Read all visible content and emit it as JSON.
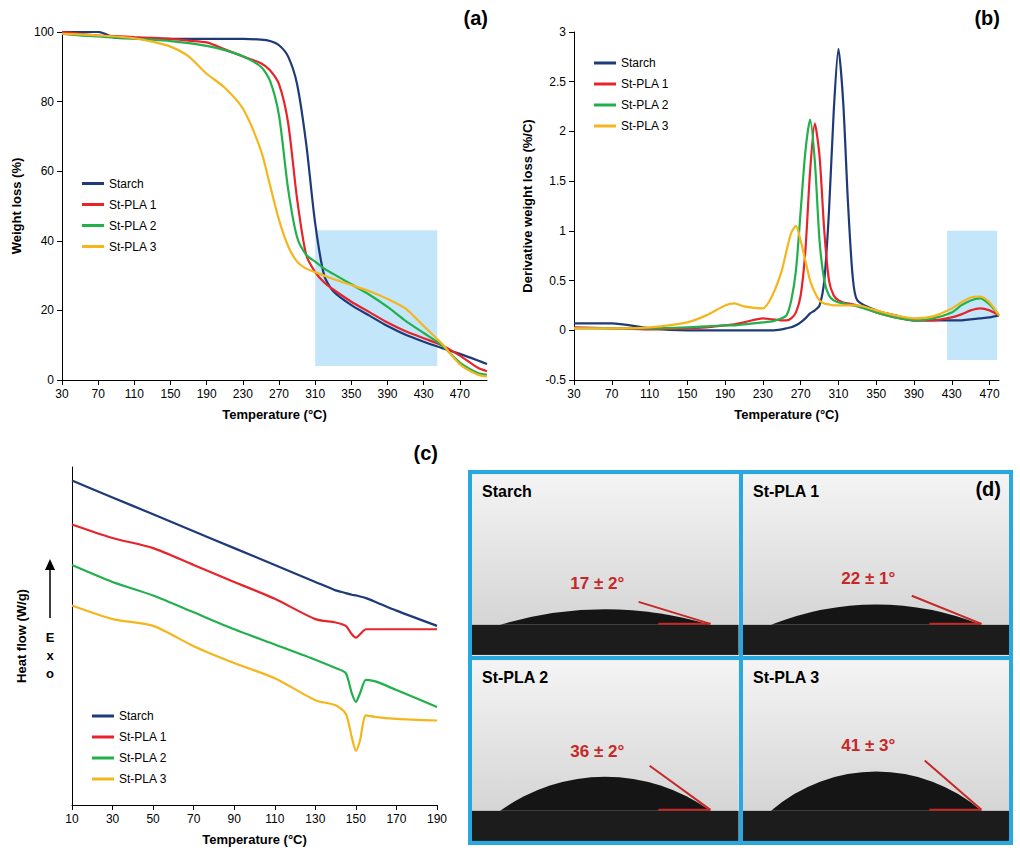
{
  "chart_data": [
    {
      "type": "line",
      "title": "(a)",
      "x_label": "Temperature (°C)",
      "y_label": "Weight loss (%)",
      "x": [
        30,
        50,
        70,
        90,
        110,
        130,
        150,
        170,
        190,
        210,
        230,
        250,
        260,
        270,
        280,
        290,
        300,
        310,
        320,
        330,
        350,
        370,
        390,
        410,
        430,
        450,
        470,
        490,
        500
      ],
      "series": [
        {
          "name": "Starch",
          "color": "#1f3a78",
          "values": [
            100,
            100,
            100,
            98.3,
            98.2,
            98.1,
            98,
            98,
            98,
            98,
            98,
            97.8,
            97.4,
            96.2,
            93,
            85,
            68,
            45,
            30,
            25.5,
            21.5,
            18.5,
            15.5,
            13,
            11,
            9.2,
            7.5,
            5.6,
            4.6
          ]
        },
        {
          "name": "St-PLA 1",
          "color": "#e8242b",
          "values": [
            100,
            99.5,
            99,
            98.8,
            98.5,
            98.3,
            98,
            97.5,
            97,
            95,
            93,
            91,
            89,
            85,
            74,
            52,
            36,
            31,
            28,
            26,
            22.5,
            19.5,
            16.5,
            14,
            12,
            10,
            7,
            3.5,
            2.5
          ]
        },
        {
          "name": "St-PLA 2",
          "color": "#22b04b",
          "values": [
            99.5,
            99,
            98.7,
            98.4,
            98.1,
            97.8,
            97.4,
            96.8,
            96,
            94.8,
            93,
            90,
            86,
            76,
            55,
            41,
            36,
            34,
            32,
            30.5,
            27.5,
            24.5,
            21,
            17,
            13.5,
            10,
            5,
            2,
            1.5
          ]
        },
        {
          "name": "St-PLA 3",
          "color": "#f5b51d",
          "values": [
            99.5,
            99.3,
            99,
            98.7,
            98.2,
            97.2,
            95.8,
            93,
            88,
            84,
            78,
            66,
            56,
            46,
            38.5,
            34,
            32,
            31,
            30,
            29,
            27.3,
            25.5,
            23.3,
            20.5,
            15.5,
            10.5,
            4.5,
            1.5,
            1
          ]
        }
      ],
      "xlim": [
        30,
        500
      ],
      "xticks": [
        30,
        70,
        110,
        150,
        190,
        230,
        270,
        310,
        350,
        390,
        430,
        470
      ],
      "ylim": [
        0,
        100
      ],
      "yticks": [
        0,
        20,
        40,
        60,
        80,
        100
      ],
      "grid": false,
      "legend": "left",
      "highlight": {
        "x": [
          310,
          445
        ],
        "y": [
          4,
          43
        ]
      }
    },
    {
      "type": "line",
      "title": "(b)",
      "x_label": "Temperature (°C)",
      "y_label": "Derivative weight loss (%/C)",
      "x": [
        30,
        70,
        110,
        150,
        170,
        190,
        200,
        210,
        230,
        240,
        250,
        255,
        260,
        265,
        270,
        275,
        280,
        285,
        290,
        295,
        300,
        305,
        310,
        315,
        320,
        325,
        330,
        350,
        370,
        390,
        410,
        430,
        440,
        450,
        460,
        470,
        480
      ],
      "series": [
        {
          "name": "Starch",
          "color": "#1f3a78",
          "values": [
            0.07,
            0.07,
            0.02,
            0,
            0,
            0,
            0,
            0,
            0,
            0,
            0.01,
            0.02,
            0.03,
            0.05,
            0.08,
            0.12,
            0.17,
            0.2,
            0.25,
            0.5,
            1.2,
            2.2,
            2.83,
            2.3,
            1.3,
            0.55,
            0.3,
            0.2,
            0.15,
            0.1,
            0.1,
            0.1,
            0.1,
            0.11,
            0.12,
            0.13,
            0.15
          ]
        },
        {
          "name": "St-PLA 1",
          "color": "#e8242b",
          "values": [
            0.03,
            0.02,
            0.01,
            0.02,
            0.03,
            0.05,
            0.06,
            0.08,
            0.12,
            0.11,
            0.1,
            0.1,
            0.12,
            0.18,
            0.35,
            0.8,
            1.6,
            2.08,
            1.75,
            1.0,
            0.5,
            0.35,
            0.3,
            0.28,
            0.27,
            0.26,
            0.25,
            0.18,
            0.13,
            0.1,
            0.1,
            0.13,
            0.16,
            0.2,
            0.22,
            0.2,
            0.15
          ]
        },
        {
          "name": "St-PLA 2",
          "color": "#22b04b",
          "values": [
            0.02,
            0.02,
            0.02,
            0.03,
            0.04,
            0.05,
            0.05,
            0.06,
            0.08,
            0.09,
            0.12,
            0.15,
            0.3,
            0.6,
            1.2,
            1.8,
            2.12,
            1.7,
            0.9,
            0.5,
            0.35,
            0.3,
            0.28,
            0.27,
            0.26,
            0.25,
            0.24,
            0.18,
            0.13,
            0.1,
            0.12,
            0.18,
            0.25,
            0.3,
            0.32,
            0.26,
            0.15
          ]
        },
        {
          "name": "St-PLA 3",
          "color": "#f5b51d",
          "values": [
            0.02,
            0.02,
            0.03,
            0.08,
            0.15,
            0.25,
            0.27,
            0.24,
            0.22,
            0.35,
            0.6,
            0.8,
            0.98,
            1.05,
            0.9,
            0.7,
            0.5,
            0.38,
            0.3,
            0.27,
            0.26,
            0.25,
            0.25,
            0.25,
            0.25,
            0.25,
            0.25,
            0.2,
            0.15,
            0.12,
            0.14,
            0.22,
            0.28,
            0.33,
            0.34,
            0.28,
            0.15
          ]
        }
      ],
      "xlim": [
        30,
        480
      ],
      "xticks": [
        30,
        70,
        110,
        150,
        190,
        230,
        270,
        310,
        350,
        390,
        430,
        470
      ],
      "ylim": [
        -0.5,
        3
      ],
      "yticks": [
        -0.5,
        0,
        0.5,
        1,
        1.5,
        2,
        2.5,
        3
      ],
      "grid": false,
      "legend": "upper left",
      "highlight": {
        "x": [
          425,
          478
        ],
        "y": [
          -0.3,
          1
        ]
      }
    },
    {
      "type": "line",
      "title": "(c)",
      "x_label": "Temperature (°C)",
      "y_label": "Heat flow (W/g)",
      "annotation": "Exo",
      "x": [
        10,
        30,
        50,
        70,
        90,
        110,
        130,
        140,
        145,
        148,
        150,
        152,
        155,
        160,
        170,
        190
      ],
      "series": [
        {
          "name": "Starch",
          "color": "#1f3a78",
          "values": [
            9.6,
            9.1,
            8.6,
            8.1,
            7.6,
            7.1,
            6.6,
            6.35,
            6.27,
            6.22,
            6.2,
            6.17,
            6.12,
            6.0,
            5.75,
            5.3
          ]
        },
        {
          "name": "St-PLA 1",
          "color": "#e8242b",
          "values": [
            8.3,
            7.9,
            7.6,
            7.1,
            6.6,
            6.1,
            5.5,
            5.4,
            5.3,
            5.05,
            4.95,
            5.05,
            5.2,
            5.2,
            5.2,
            5.2
          ]
        },
        {
          "name": "St-PLA 2",
          "color": "#22b04b",
          "values": [
            7.1,
            6.6,
            6.2,
            5.7,
            5.2,
            4.75,
            4.3,
            4.05,
            3.9,
            3.3,
            3.05,
            3.3,
            3.7,
            3.65,
            3.4,
            2.9
          ]
        },
        {
          "name": "St-PLA 3",
          "color": "#f5b51d",
          "values": [
            5.9,
            5.5,
            5.3,
            4.7,
            4.2,
            3.75,
            3.1,
            2.95,
            2.7,
            2.0,
            1.6,
            1.9,
            2.65,
            2.6,
            2.55,
            2.5
          ]
        }
      ],
      "xlim": [
        10,
        190
      ],
      "xticks": [
        10,
        30,
        50,
        70,
        90,
        110,
        130,
        150,
        170,
        190
      ],
      "ylim": [
        0,
        10
      ],
      "grid": false,
      "legend": "lower left",
      "tick_labels": "x"
    }
  ],
  "contact_angle": {
    "title": "(d)",
    "samples": [
      {
        "name": "Starch",
        "angle": 17,
        "label": "17 ± 2°"
      },
      {
        "name": "St-PLA 1",
        "angle": 22,
        "label": "22 ± 1°"
      },
      {
        "name": "St-PLA 2",
        "angle": 36,
        "label": "36 ± 2°"
      },
      {
        "name": "St-PLA 3",
        "angle": 41,
        "label": "41 ± 3°"
      }
    ]
  }
}
